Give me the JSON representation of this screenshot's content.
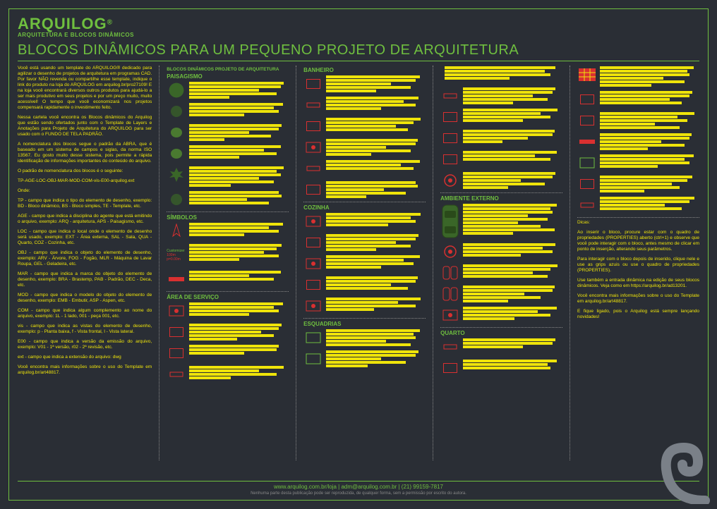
{
  "brand": "ARQUILOG",
  "brand_sup": "®",
  "subbrand": "ARQUITETURA E BLOCOS DINÂMICOS",
  "title": "BLOCOS DINÂMICOS PARA UM PEQUENO PROJETO DE ARQUITETURA",
  "intro_paragraphs": [
    "Você está usando um template do ARQUILOG® dedicado para agilizar o desenho de projetos de arquitetura em programas CAD. Por favor NÃO revenda ou compartilhe esse template, indique o link do produto na loja do ARQUILOG em arquilog.br/pro27109! E na loja você encontrará diversos outros produtos para ajudá-lo a ser mais produtivo em seus projetos e por um preço muito, muito acessível! O tempo que você economizará nos projetos compensará rapidamente o investimento feito.",
    "Nessa cartela você encontra os Blocos dinâmicos do Arquilog que estão sendo ofertados junto com o Template de Layers e Anotações para Projeto de Arquitetura do ARQUILOG para ser usado com o FUNDO DE TELA PADRÃO.",
    "A nomenclatura dos blocos segue o padrão da ABRA, que é baseado em um sistema de campos e siglas, da norma ISO 13567. Eu gosto muito desse sistema, pois permite a rápida identificação de informações importantes do conteúdo do arquivo.",
    "O padrão de nomenclatura dos blocos é o seguinte:",
    "TP-AGE-LOC-OBJ-MAR-MOD-COM-vis-E00-arquilog.ext",
    "Onde:",
    "TP - campo que indica o tipo do elemento de desenho, exemplo: BD - Bloco dinâmico, BS - Bloco simples, TE - Template, etc.",
    "AGE - campo que indica a disciplina do agente que está emitindo o arquivo, exemplo: ARQ - arquitetura, APS - Paisagismo, etc.",
    "LOC - campo que indica o local onde o elemento de desenho será usado, exemplo: EXT - Área externa, SAL - Sala, QUA - Quarto, COZ - Cozinha, etc.",
    "OBJ - campo que indica o objeto do elemento de desenho, exemplo: ARV - Árvore, FOG - Fogão, MLR - Máquina de Lavar Roupa, GEL - Geladeira, etc.",
    "MAR - campo que indica a marca do objeto do elemento de desenho, exemplo: BRA - Brastemp, PAB - Padrão, DEC - Deca, etc.",
    "MOD - campo que indica o modelo do objeto do elemento de desenho, exemplo: EMB - Embutir, ASP - Aspen, etc.",
    "COM - campo que indica algum complemento ao nome do arquivo, exemplo: 1L - 1 lado, 001 - peça 001, etc.",
    "vis - campo que indica as vistas do elemento de desenho, exemplo: p - Planta baixa, f - Vista frontal, l - Vista lateral.",
    "E00 - campo que indica a versão da emissão do arquivo, exemplo: V01 - 1ª versão, r02 - 2ª revisão, etc.",
    "ext - campo que indica a extensão do arquivo: dwg",
    "Você encontra mais informações sobre o uso do Template em arquilog.br/art48817."
  ],
  "sections": {
    "col2_top": "BLOCOS DINÂMICOS PROJETO DE ARQUITETURA",
    "paisagismo": "PAISAGISMO",
    "simbolos": "SÍMBOLOS",
    "area_servico": "ÁREA DE SERVIÇO",
    "banheiro": "BANHEIRO",
    "cozinha": "COZINHA",
    "esquadrias": "ESQUADRIAS",
    "amb_externo": "AMBIENTE EXTERNO",
    "quarto": "QUARTO"
  },
  "customizer_label": "Customizer",
  "customizer_lines": [
    "100m",
    "p=0.00m"
  ],
  "tips": [
    "Dicas:",
    "Ao inserir o bloco, procure estar com o quadro de propriedades (PROPERTIES) aberto (ctrl+1) e observe que você pode interagir com o bloco, antes mesmo de clicar em ponto de inserção, alterando seus parâmetros.",
    "Para interagir com o bloco depois de inserido, clique nele e use as grips azuis ou use o quadro de propriedades (PROPERTIES).",
    "Use também a entrada dinâmica na edição de seus blocos dinâmicos. Veja como em https://arquilog.br/ad13201.",
    "Você encontra mais informações sobre o uso do Template em arquilog.br/art48817.",
    "E fique ligado, pois o Arquilog está sempre lançando novidades!"
  ],
  "footer_link": "www.arquilog.com.br/loja | adm@arquilog.com.br | (21) 99159-7817",
  "footer_copy": "Nenhuma parte desta publicação pode ser reproduzida, de qualquer forma, sem a permissão por escrito do autora.",
  "colors": {
    "bg": "#2a2e35",
    "green": "#6fbf3f",
    "yellow": "#efe40a",
    "red": "#d93030",
    "grey": "#888888"
  }
}
